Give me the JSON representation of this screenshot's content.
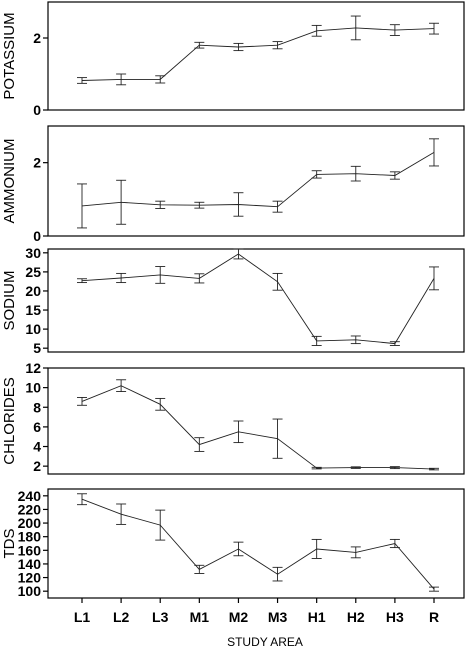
{
  "chart_data": {
    "type": "line",
    "xlabel": "STUDY AREA",
    "categories": [
      "L1",
      "L2",
      "L3",
      "M1",
      "M2",
      "M3",
      "H1",
      "H2",
      "H3",
      "R"
    ],
    "line_color": "#222222",
    "panels": [
      {
        "ylabel": "POTASSIUM",
        "ylim": [
          0,
          3
        ],
        "yticks": [
          0,
          2
        ],
        "values": [
          0.82,
          0.85,
          0.85,
          1.8,
          1.75,
          1.8,
          2.2,
          2.28,
          2.22,
          2.26
        ],
        "errors": [
          0.08,
          0.15,
          0.1,
          0.08,
          0.1,
          0.1,
          0.15,
          0.33,
          0.15,
          0.15
        ]
      },
      {
        "ylabel": "AMMONIUM",
        "ylim": [
          0,
          3
        ],
        "yticks": [
          0,
          2
        ],
        "values": [
          0.82,
          0.92,
          0.85,
          0.84,
          0.86,
          0.8,
          1.68,
          1.7,
          1.65,
          2.28
        ],
        "errors": [
          0.6,
          0.6,
          0.1,
          0.08,
          0.32,
          0.15,
          0.1,
          0.2,
          0.1,
          0.37
        ]
      },
      {
        "ylabel": "SODIUM",
        "ylim": [
          4,
          31
        ],
        "yticks": [
          5,
          10,
          15,
          20,
          25,
          30
        ],
        "values": [
          22.7,
          23.4,
          24.2,
          23.3,
          29.7,
          22.4,
          6.9,
          7.2,
          6.2,
          23.3
        ],
        "errors": [
          0.5,
          1.2,
          2.2,
          1.2,
          1.3,
          2.2,
          1.2,
          1.0,
          0.5,
          3.0
        ]
      },
      {
        "ylabel": "CHLORIDES",
        "ylim": [
          1.2,
          12
        ],
        "yticks": [
          2,
          4,
          6,
          8,
          10,
          12
        ],
        "values": [
          8.6,
          10.2,
          8.3,
          4.2,
          5.5,
          4.8,
          1.8,
          1.85,
          1.85,
          1.7
        ],
        "errors": [
          0.4,
          0.6,
          0.6,
          0.7,
          1.1,
          2.0,
          0.08,
          0.08,
          0.1,
          0.08
        ]
      },
      {
        "ylabel": "TDS",
        "ylim": [
          90,
          250
        ],
        "yticks": [
          100,
          120,
          140,
          160,
          180,
          200,
          220,
          240
        ],
        "values": [
          235,
          213,
          197,
          132,
          162,
          125,
          162,
          157,
          170,
          103
        ],
        "errors": [
          8,
          15,
          22,
          6,
          10,
          10,
          14,
          8,
          6,
          3
        ]
      }
    ]
  }
}
